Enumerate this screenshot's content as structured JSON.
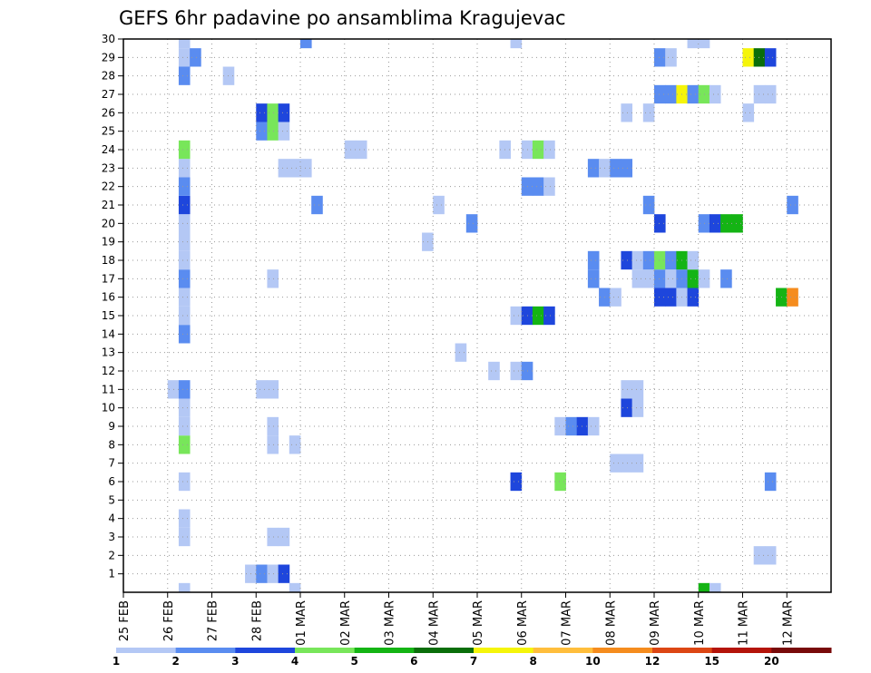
{
  "chart_data": {
    "type": "heatmap",
    "title": "GEFS 6hr padavine po ansamblima Kragujevac",
    "y_ticks": [
      "1",
      "2",
      "3",
      "4",
      "5",
      "6",
      "7",
      "8",
      "9",
      "10",
      "11",
      "12",
      "13",
      "14",
      "15",
      "16",
      "17",
      "18",
      "19",
      "20",
      "21",
      "22",
      "23",
      "24",
      "25",
      "26",
      "27",
      "28",
      "29",
      "30"
    ],
    "x_ticks": [
      "25 FEB",
      "26 FEB",
      "27 FEB",
      "28 FEB",
      "01 MAR",
      "02 MAR",
      "03 MAR",
      "04 MAR",
      "05 MAR",
      "06 MAR",
      "07 MAR",
      "08 MAR",
      "09 MAR",
      "10 MAR",
      "11 MAR",
      "12 MAR"
    ],
    "x_range_days": [
      0,
      16
    ],
    "y_range": [
      0,
      30
    ],
    "x_step_hours": 6,
    "grid": true,
    "legend": {
      "position": "bottom",
      "labels": [
        "1",
        "2",
        "3",
        "4",
        "5",
        "6",
        "7",
        "8",
        "10",
        "12",
        "15",
        "20"
      ],
      "colors": [
        "#b4c8f5",
        "#5a8cf0",
        "#1e46dc",
        "#78e65a",
        "#14b414",
        "#0a6e0a",
        "#f5f50a",
        "#ffbe3c",
        "#f58c1e",
        "#dc4614",
        "#b4140a",
        "#780a0a"
      ]
    },
    "cells": [
      [
        1.25,
        0,
        1
      ],
      [
        3.75,
        0,
        1
      ],
      [
        13.0,
        0,
        5
      ],
      [
        13.25,
        0,
        1
      ],
      [
        2.75,
        1,
        1
      ],
      [
        3.0,
        1,
        2
      ],
      [
        3.25,
        1,
        1
      ],
      [
        3.5,
        1,
        3
      ],
      [
        14.25,
        2,
        1
      ],
      [
        14.5,
        2,
        1
      ],
      [
        1.25,
        3,
        1
      ],
      [
        3.25,
        3,
        1
      ],
      [
        3.5,
        3,
        1
      ],
      [
        1.25,
        4,
        1
      ],
      [
        1.25,
        6,
        1
      ],
      [
        8.75,
        6,
        3
      ],
      [
        9.75,
        6,
        4
      ],
      [
        14.5,
        6,
        2
      ],
      [
        11.0,
        7,
        1
      ],
      [
        11.25,
        7,
        1
      ],
      [
        11.5,
        7,
        1
      ],
      [
        1.25,
        8,
        4
      ],
      [
        3.25,
        8,
        1
      ],
      [
        3.75,
        8,
        1
      ],
      [
        1.25,
        9,
        1
      ],
      [
        3.25,
        9,
        1
      ],
      [
        9.75,
        9,
        1
      ],
      [
        10.0,
        9,
        2
      ],
      [
        10.25,
        9,
        3
      ],
      [
        10.5,
        9,
        1
      ],
      [
        1.25,
        10,
        1
      ],
      [
        11.25,
        10,
        3
      ],
      [
        11.5,
        10,
        1
      ],
      [
        1.0,
        11,
        1
      ],
      [
        1.25,
        11,
        2
      ],
      [
        3.0,
        11,
        1
      ],
      [
        3.25,
        11,
        1
      ],
      [
        11.25,
        11,
        1
      ],
      [
        11.5,
        11,
        1
      ],
      [
        8.25,
        12,
        1
      ],
      [
        8.75,
        12,
        1
      ],
      [
        9.0,
        12,
        2
      ],
      [
        7.5,
        13,
        1
      ],
      [
        1.25,
        14,
        2
      ],
      [
        1.25,
        15,
        1
      ],
      [
        8.75,
        15,
        1
      ],
      [
        9.0,
        15,
        3
      ],
      [
        9.25,
        15,
        5
      ],
      [
        9.5,
        15,
        3
      ],
      [
        1.25,
        16,
        1
      ],
      [
        10.75,
        16,
        2
      ],
      [
        11.0,
        16,
        1
      ],
      [
        12.0,
        16,
        3
      ],
      [
        12.25,
        16,
        3
      ],
      [
        12.5,
        16,
        1
      ],
      [
        12.75,
        16,
        3
      ],
      [
        14.75,
        16,
        5
      ],
      [
        15.0,
        16,
        9
      ],
      [
        1.25,
        17,
        2
      ],
      [
        3.25,
        17,
        1
      ],
      [
        10.5,
        17,
        2
      ],
      [
        11.5,
        17,
        1
      ],
      [
        11.75,
        17,
        1
      ],
      [
        12.0,
        17,
        2
      ],
      [
        12.25,
        17,
        1
      ],
      [
        12.5,
        17,
        2
      ],
      [
        12.75,
        17,
        5
      ],
      [
        13.0,
        17,
        1
      ],
      [
        13.5,
        17,
        2
      ],
      [
        1.25,
        18,
        1
      ],
      [
        10.5,
        18,
        2
      ],
      [
        11.25,
        18,
        3
      ],
      [
        11.5,
        18,
        1
      ],
      [
        11.75,
        18,
        2
      ],
      [
        12.0,
        18,
        4
      ],
      [
        12.25,
        18,
        2
      ],
      [
        12.5,
        18,
        5
      ],
      [
        12.75,
        18,
        1
      ],
      [
        1.25,
        19,
        1
      ],
      [
        6.75,
        19,
        1
      ],
      [
        1.25,
        20,
        1
      ],
      [
        7.75,
        20,
        2
      ],
      [
        12.0,
        20,
        3
      ],
      [
        13.0,
        20,
        2
      ],
      [
        13.25,
        20,
        3
      ],
      [
        13.5,
        20,
        5
      ],
      [
        13.75,
        20,
        5
      ],
      [
        1.25,
        21,
        3
      ],
      [
        4.25,
        21,
        2
      ],
      [
        7.0,
        21,
        1
      ],
      [
        11.75,
        21,
        2
      ],
      [
        15.0,
        21,
        2
      ],
      [
        1.25,
        22,
        2
      ],
      [
        9.0,
        22,
        2
      ],
      [
        9.25,
        22,
        2
      ],
      [
        9.5,
        22,
        1
      ],
      [
        1.25,
        23,
        1
      ],
      [
        3.5,
        23,
        1
      ],
      [
        3.75,
        23,
        1
      ],
      [
        4.0,
        23,
        1
      ],
      [
        10.5,
        23,
        2
      ],
      [
        10.75,
        23,
        1
      ],
      [
        11.0,
        23,
        2
      ],
      [
        11.25,
        23,
        2
      ],
      [
        1.25,
        24,
        4
      ],
      [
        5.0,
        24,
        1
      ],
      [
        5.25,
        24,
        1
      ],
      [
        8.5,
        24,
        1
      ],
      [
        9.0,
        24,
        1
      ],
      [
        9.25,
        24,
        4
      ],
      [
        9.5,
        24,
        1
      ],
      [
        3.0,
        25,
        2
      ],
      [
        3.25,
        25,
        4
      ],
      [
        3.5,
        25,
        1
      ],
      [
        3.0,
        26,
        3
      ],
      [
        3.25,
        26,
        4
      ],
      [
        3.5,
        26,
        3
      ],
      [
        11.25,
        26,
        1
      ],
      [
        11.75,
        26,
        1
      ],
      [
        14.0,
        26,
        1
      ],
      [
        12.0,
        27,
        2
      ],
      [
        12.25,
        27,
        2
      ],
      [
        12.5,
        27,
        7
      ],
      [
        12.75,
        27,
        2
      ],
      [
        13.0,
        27,
        4
      ],
      [
        13.25,
        27,
        1
      ],
      [
        14.25,
        27,
        1
      ],
      [
        14.5,
        27,
        1
      ],
      [
        1.25,
        28,
        2
      ],
      [
        2.25,
        28,
        1
      ],
      [
        1.25,
        29,
        1
      ],
      [
        1.5,
        29,
        2
      ],
      [
        12.0,
        29,
        2
      ],
      [
        12.25,
        29,
        1
      ],
      [
        14.0,
        29,
        7
      ],
      [
        14.25,
        29,
        6
      ],
      [
        14.5,
        29,
        3
      ],
      [
        1.25,
        30,
        1
      ],
      [
        4.0,
        30,
        2
      ],
      [
        8.75,
        30,
        1
      ],
      [
        12.75,
        30,
        1
      ],
      [
        13.0,
        30,
        1
      ]
    ]
  }
}
